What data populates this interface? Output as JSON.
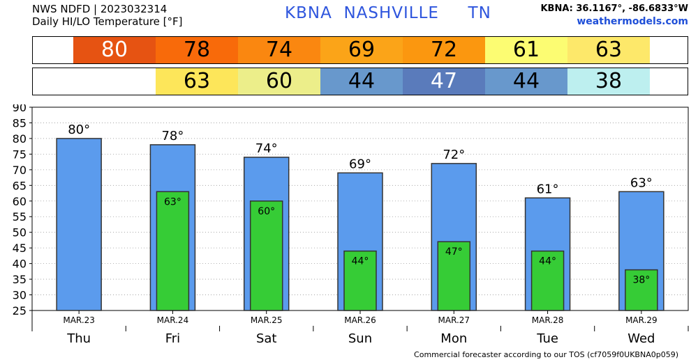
{
  "header": {
    "line1": "NWS NDFD | 2023032314",
    "line2": "Daily HI/LO Temperature [°F]",
    "station_code": "KBNA",
    "station_name": "NASHVILLE",
    "state": "TN",
    "coords": "KBNA: 36.1167°, -86.6833°W",
    "site": "weathermodels.com"
  },
  "footer": "Commercial forecaster according to our TOS (cf7059f0UKBNA0p059)",
  "colors": {
    "hi_bar": "#5b9bed",
    "lo_bar": "#36cc36",
    "hi_band": [
      "#e65312",
      "#f86a0a",
      "#fa8710",
      "#fba418",
      "#fb970f",
      "#fcfc72",
      "#fde86a"
    ],
    "lo_band": [
      "#fde65a",
      "#ecee8a",
      "#6898cc",
      "#5a7bbb",
      "#6898cc",
      "#bdefef"
    ]
  },
  "chart_data": {
    "type": "bar",
    "categories": [
      "Thu",
      "Fri",
      "Sat",
      "Sun",
      "Mon",
      "Tue",
      "Wed"
    ],
    "dates": [
      "MAR.23",
      "MAR.24",
      "MAR.25",
      "MAR.26",
      "MAR.27",
      "MAR.28",
      "MAR.29"
    ],
    "series": [
      {
        "values": [
          80,
          78,
          74,
          69,
          72,
          61,
          63
        ]
      },
      {
        "values": [
          null,
          63,
          60,
          44,
          47,
          44,
          38
        ]
      }
    ],
    "hi_labels": [
      "80°",
      "78°",
      "74°",
      "69°",
      "72°",
      "61°",
      "63°"
    ],
    "lo_labels": [
      "",
      "63°",
      "60°",
      "44°",
      "47°",
      "44°",
      "38°"
    ],
    "hi_band_text": [
      "80",
      "78",
      "74",
      "69",
      "72",
      "61",
      "63"
    ],
    "lo_band_text": [
      "",
      "63",
      "60",
      "44",
      "47",
      "44",
      "38"
    ],
    "yticks": [
      "90",
      "85",
      "80",
      "75",
      "70",
      "65",
      "60",
      "55",
      "50",
      "45",
      "40",
      "35",
      "30",
      "25"
    ],
    "ylim": [
      25,
      90
    ],
    "grid": true
  }
}
